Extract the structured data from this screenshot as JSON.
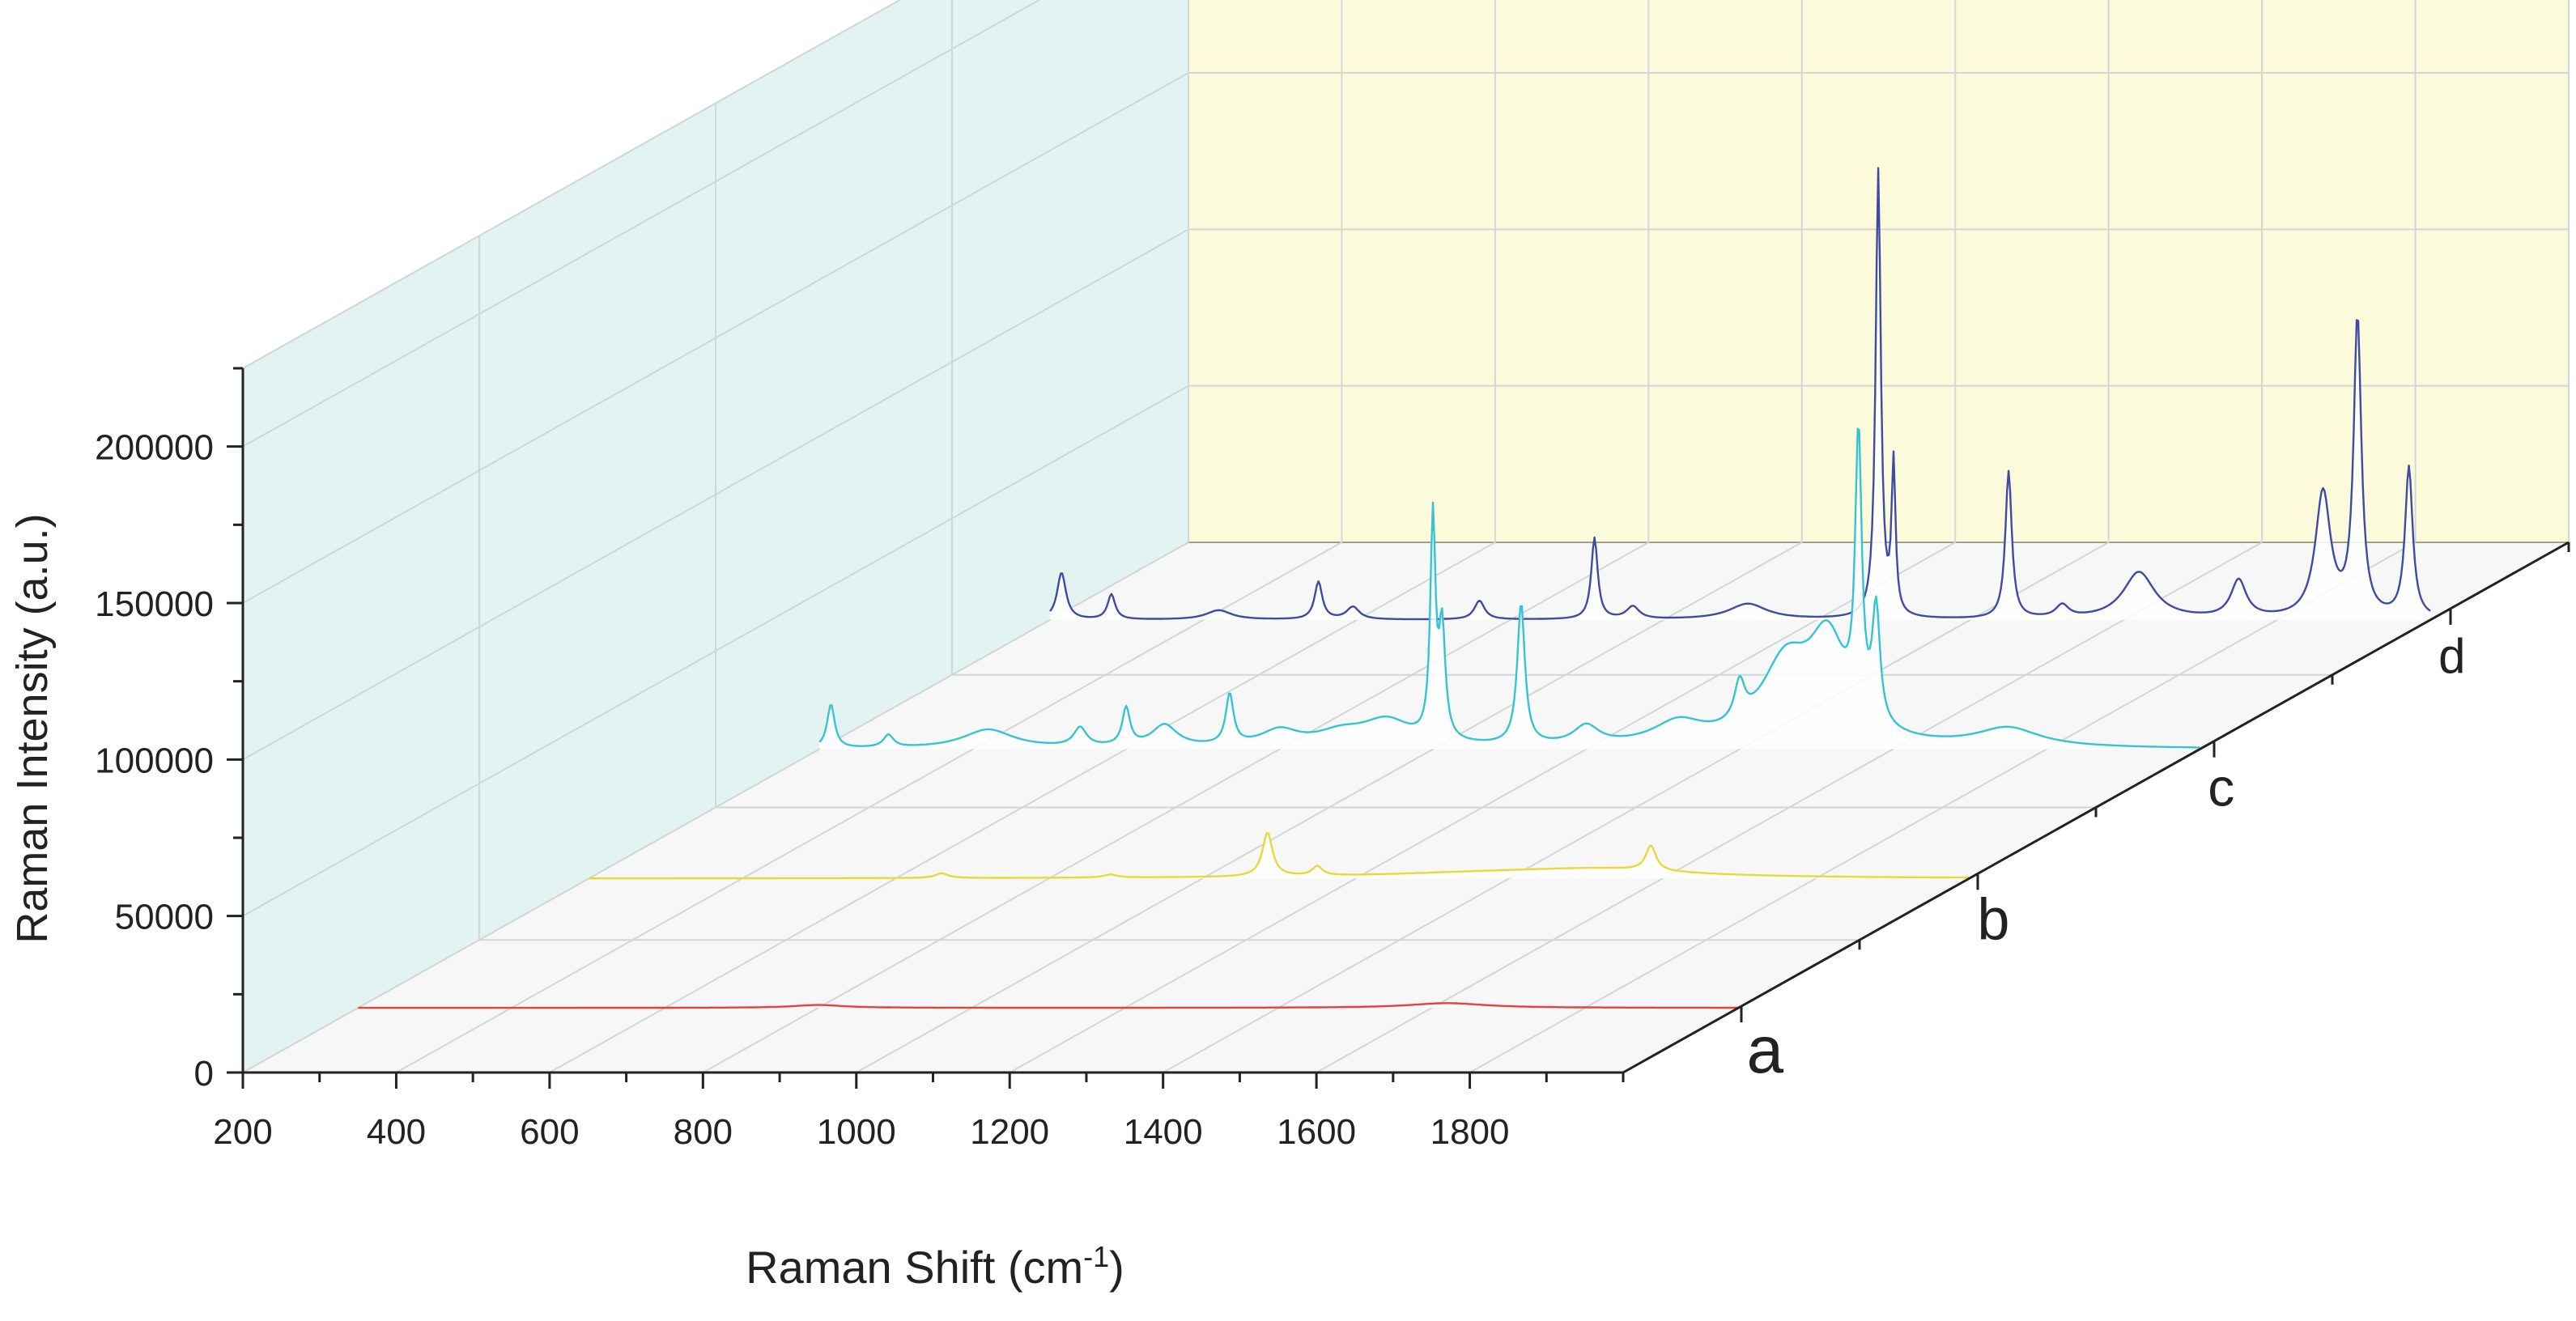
{
  "chart_data": {
    "type": "line",
    "subtype": "3d-waterfall",
    "title": "",
    "xlabel": {
      "text": "Raman Shift (cm",
      "sup": "-1",
      "suffix": ")"
    },
    "ylabel": "Raman Intensity (a.u.)",
    "xlim": [
      200,
      2000
    ],
    "ylim": [
      0,
      225000
    ],
    "x_ticks": [
      200,
      400,
      600,
      800,
      1000,
      1200,
      1400,
      1600,
      1800
    ],
    "y_ticks": [
      0,
      50000,
      100000,
      150000,
      200000
    ],
    "y_tick_labels": [
      "0",
      "50000",
      "100000",
      "150000",
      "200000"
    ],
    "grid": true,
    "colors": {
      "side_wall": "#e3f3f1",
      "back_wall": "#fbfbdc",
      "floor": "#f7f7f7",
      "grid": "#cfd8d6",
      "axis": "#222222"
    },
    "series": [
      {
        "name": "a",
        "color": "#e8403a",
        "x_start": 200,
        "x_end": 2000,
        "peaks": [
          [
            800,
            900,
            40
          ],
          [
            1620,
            1500,
            60
          ]
        ]
      },
      {
        "name": "b",
        "color": "#e6da3a",
        "x_start": 200,
        "x_end": 2000,
        "peaks": [
          [
            660,
            1500,
            10
          ],
          [
            880,
            1000,
            10
          ],
          [
            1085,
            14000,
            8
          ],
          [
            1150,
            3000,
            8
          ],
          [
            1400,
            1800,
            200
          ],
          [
            1530,
            2000,
            120
          ],
          [
            1585,
            8000,
            8
          ]
        ]
      },
      {
        "name": "c",
        "color": "#35c4d0",
        "x_start": 200,
        "x_end": 2000,
        "peaks": [
          [
            215,
            14000,
            6
          ],
          [
            290,
            4000,
            8
          ],
          [
            420,
            6000,
            40
          ],
          [
            540,
            6000,
            10
          ],
          [
            600,
            12000,
            6
          ],
          [
            650,
            7000,
            20
          ],
          [
            735,
            16000,
            6
          ],
          [
            800,
            5000,
            30
          ],
          [
            880,
            4000,
            40
          ],
          [
            940,
            8000,
            40
          ],
          [
            1000,
            70000,
            4
          ],
          [
            1012,
            35000,
            5
          ],
          [
            1115,
            45000,
            6
          ],
          [
            1200,
            6000,
            20
          ],
          [
            1320,
            7000,
            40
          ],
          [
            1400,
            12000,
            8
          ],
          [
            1460,
            25000,
            40
          ],
          [
            1515,
            30000,
            30
          ],
          [
            1555,
            88000,
            5
          ],
          [
            1578,
            36000,
            6
          ],
          [
            1750,
            6000,
            50
          ]
        ]
      },
      {
        "name": "d",
        "color": "#3f4aa3",
        "x_start": 200,
        "x_end": 2000,
        "peaks": [
          [
            215,
            15000,
            7
          ],
          [
            280,
            8000,
            6
          ],
          [
            420,
            3000,
            20
          ],
          [
            550,
            12000,
            6
          ],
          [
            595,
            4000,
            10
          ],
          [
            760,
            6000,
            8
          ],
          [
            910,
            26000,
            5
          ],
          [
            960,
            4000,
            10
          ],
          [
            1110,
            5000,
            30
          ],
          [
            1280,
            143000,
            4
          ],
          [
            1300,
            48000,
            3
          ],
          [
            1450,
            47000,
            5
          ],
          [
            1520,
            4000,
            10
          ],
          [
            1620,
            15000,
            25
          ],
          [
            1750,
            12000,
            12
          ],
          [
            1860,
            40000,
            12
          ],
          [
            1905,
            95000,
            6
          ],
          [
            1972,
            48000,
            6
          ]
        ]
      }
    ]
  }
}
